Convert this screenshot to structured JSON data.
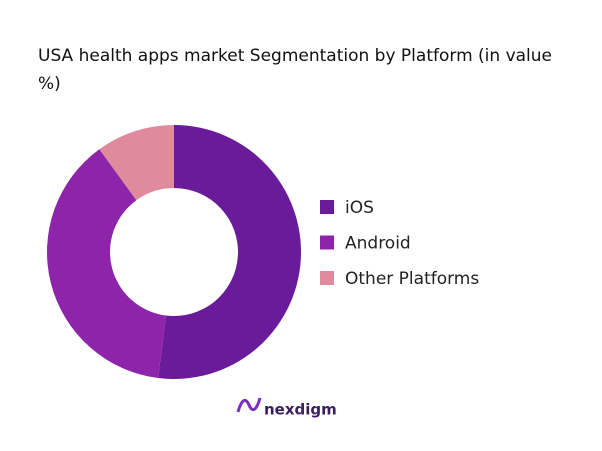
{
  "chart_data": {
    "type": "donut",
    "title": "USA health apps market Segmentation by Platform (in value %)",
    "categories": [
      "iOS",
      "Android",
      "Other Platforms"
    ],
    "values": [
      52,
      38,
      10
    ],
    "colors": [
      "#6a1b9a",
      "#8e24aa",
      "#e08a9e"
    ],
    "legend": "right"
  },
  "brand": "nexdigm"
}
